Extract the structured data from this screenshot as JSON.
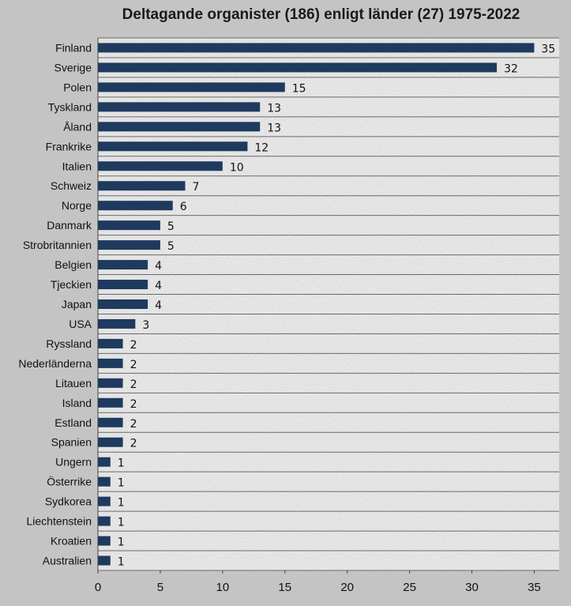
{
  "chart_data": {
    "type": "bar",
    "orientation": "horizontal",
    "title": "Deltagande organister (186) enligt länder (27) 1975-2022",
    "xlabel": "",
    "ylabel": "",
    "categories": [
      "Finland",
      "Sverige",
      "Polen",
      "Tyskland",
      "Åland",
      "Frankrike",
      "Italien",
      "Schweiz",
      "Norge",
      "Danmark",
      "Strobritannien",
      "Belgien",
      "Tjeckien",
      "Japan",
      "USA",
      "Ryssland",
      "Nederländerna",
      "Litauen",
      "Island",
      "Estland",
      "Spanien",
      "Ungern",
      "Österrike",
      "Sydkorea",
      "Liechtenstein",
      "Kroatien",
      "Australien"
    ],
    "values": [
      35,
      32,
      15,
      13,
      13,
      12,
      10,
      7,
      6,
      5,
      5,
      4,
      4,
      4,
      3,
      2,
      2,
      2,
      2,
      2,
      2,
      1,
      1,
      1,
      1,
      1,
      1
    ],
    "xlim": [
      0,
      37
    ],
    "xticks": [
      0,
      5,
      10,
      15,
      20,
      25,
      30,
      35
    ],
    "grid": "horizontal",
    "legend": "none",
    "bar_color": "#1f3a5f"
  }
}
